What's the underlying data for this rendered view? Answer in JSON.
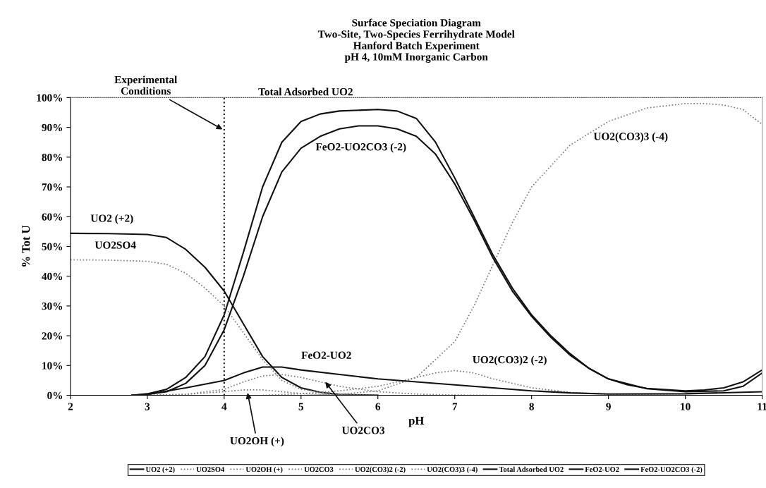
{
  "chart_data": {
    "type": "line",
    "title": "Surface Speciation Diagram\nTwo-Site, Two-Species Ferrihydrate Model\nHanford Batch Experiment\npH 4, 10mM Inorganic Carbon",
    "xlabel": "pH",
    "ylabel": "% Tot U",
    "xlim": [
      2,
      11
    ],
    "xticks": [
      2,
      3,
      4,
      5,
      6,
      7,
      8,
      9,
      10,
      11
    ],
    "ylim": [
      0,
      100
    ],
    "yticks": [
      {
        "value": 0,
        "label": "0%"
      },
      {
        "value": 10,
        "label": "10%"
      },
      {
        "value": 20,
        "label": "20%"
      },
      {
        "value": 30,
        "label": "30%"
      },
      {
        "value": 40,
        "label": "40%"
      },
      {
        "value": 50,
        "label": "50%"
      },
      {
        "value": 60,
        "label": "60%"
      },
      {
        "value": 70,
        "label": "70%"
      },
      {
        "value": 80,
        "label": "80%"
      },
      {
        "value": 90,
        "label": "90%"
      },
      {
        "value": 100,
        "label": "100%"
      }
    ],
    "grid": false,
    "legend": "bottom",
    "marker": "none",
    "series": [
      {
        "name": "UO2 (+2)",
        "color": "#111111",
        "line_style": "solid",
        "x": [
          2,
          2.5,
          3,
          3.25,
          3.5,
          3.75,
          4,
          4.25,
          4.5,
          4.75,
          5,
          5.25,
          5.5,
          6
        ],
        "values": [
          54.4,
          54.3,
          54,
          53,
          49,
          43,
          35,
          24,
          13,
          6,
          2.5,
          1,
          0.3,
          0
        ]
      },
      {
        "name": "UO2SO4",
        "color": "#777777",
        "line_style": "dotted",
        "x": [
          2,
          2.5,
          3,
          3.25,
          3.5,
          3.75,
          4,
          4.25,
          4.5,
          4.75,
          5,
          5.5,
          6
        ],
        "values": [
          45.5,
          45.4,
          45,
          44,
          41,
          36,
          30,
          21,
          12,
          5,
          2,
          0.3,
          0
        ]
      },
      {
        "name": "UO2OH (+)",
        "color": "#777777",
        "line_style": "dotted",
        "x": [
          3,
          3.5,
          4,
          4.25,
          4.5,
          4.75,
          5,
          5.5,
          6
        ],
        "values": [
          0,
          0.3,
          1.2,
          1.8,
          1.8,
          1.2,
          0.6,
          0.1,
          0
        ]
      },
      {
        "name": "UO2CO3",
        "color": "#777777",
        "line_style": "dotted",
        "x": [
          3,
          3.5,
          4,
          4.25,
          4.5,
          4.75,
          5,
          5.25,
          5.5,
          6,
          6.5,
          7,
          7.5
        ],
        "values": [
          0,
          0.3,
          2,
          4.5,
          6.5,
          7,
          6,
          4.5,
          3,
          1.2,
          0.4,
          0.1,
          0
        ]
      },
      {
        "name": "UO2(CO3)2 (-2)",
        "color": "#777777",
        "line_style": "dotted",
        "x": [
          4.5,
          5,
          5.5,
          6,
          6.5,
          6.75,
          7,
          7.25,
          7.5,
          8,
          8.5,
          9,
          10
        ],
        "values": [
          0,
          0.5,
          1.5,
          3,
          6,
          7.5,
          8.3,
          7.5,
          5.5,
          2.5,
          1,
          0.3,
          0
        ]
      },
      {
        "name": "UO2(CO3)3 (-4)",
        "color": "#777777",
        "line_style": "dotted",
        "x": [
          5,
          5.5,
          6,
          6.5,
          7,
          7.25,
          7.5,
          7.75,
          8,
          8.25,
          8.5,
          9,
          9.5,
          10,
          10.25,
          10.5,
          10.75,
          11
        ],
        "values": [
          0,
          0.3,
          1.5,
          6,
          18,
          30,
          44,
          58,
          70,
          77,
          84,
          92,
          96.5,
          98,
          98,
          97.5,
          96,
          91
        ]
      },
      {
        "name": "Total Adsorbed UO2",
        "color": "#111111",
        "line_style": "solid",
        "x": [
          2.8,
          3,
          3.25,
          3.5,
          3.75,
          4,
          4.25,
          4.5,
          4.75,
          5,
          5.25,
          5.5,
          6,
          6.25,
          6.5,
          6.75,
          7,
          7.25,
          7.5,
          7.75,
          8,
          8.25,
          8.5,
          8.75,
          9,
          9.25,
          9.5,
          10,
          10.25,
          10.5,
          10.75,
          11
        ],
        "values": [
          0,
          0.5,
          2,
          6,
          13,
          27,
          48,
          70,
          85,
          92,
          94.5,
          95.5,
          96,
          95.5,
          93,
          85,
          73,
          60,
          47,
          36,
          27,
          20,
          14,
          9,
          5.5,
          3.5,
          2.3,
          1.5,
          1.8,
          2.5,
          4.5,
          8.5
        ]
      },
      {
        "name": "FeO2-UO2",
        "color": "#111111",
        "line_style": "solid",
        "x": [
          2.8,
          3,
          3.5,
          4,
          4.25,
          4.5,
          4.75,
          5,
          5.5,
          6,
          6.5,
          7,
          7.5,
          8,
          8.5,
          9,
          10,
          11
        ],
        "values": [
          0,
          0.3,
          2.5,
          5,
          7.5,
          9.5,
          9.5,
          8.5,
          7,
          5.5,
          4.5,
          3.5,
          2.5,
          1.5,
          0.8,
          0.4,
          0.5,
          1.2
        ]
      },
      {
        "name": "FeO2-UO2CO3 (-2)",
        "color": "#111111",
        "line_style": "solid",
        "x": [
          2.8,
          3,
          3.25,
          3.5,
          3.75,
          4,
          4.25,
          4.5,
          4.75,
          5,
          5.25,
          5.5,
          5.75,
          6,
          6.25,
          6.5,
          6.75,
          7,
          7.25,
          7.5,
          7.75,
          8,
          8.25,
          8.5,
          8.75,
          9,
          9.5,
          10,
          10.5,
          10.75,
          11
        ],
        "values": [
          0,
          0.3,
          1.2,
          4,
          10,
          22,
          40,
          60,
          75,
          83,
          87,
          89.5,
          90.5,
          90.5,
          89.5,
          87,
          81,
          71,
          59,
          46,
          35,
          26.5,
          19.5,
          13.5,
          9,
          5.5,
          2.2,
          1.2,
          1.5,
          3,
          7.5
        ]
      }
    ],
    "ref_lines": [
      {
        "axis": "x",
        "value": 4,
        "line_style": "dotted",
        "color": "#111111"
      }
    ],
    "annotations": [
      {
        "text": "Experimental Conditions",
        "x": 4,
        "y": 89
      },
      "Total Adsorbed UO2",
      "FeO2-UO2CO3 (-2)",
      "UO2(CO3)3 (-4)",
      "UO2 (+2)",
      "UO2SO4",
      "FeO2-UO2",
      "UO2(CO3)2 (-2)",
      {
        "text": "UO2OH (+)",
        "x": 4.3,
        "y": 1.5
      },
      {
        "text": "UO2CO3",
        "x": 5.3,
        "y": 5
      }
    ]
  }
}
